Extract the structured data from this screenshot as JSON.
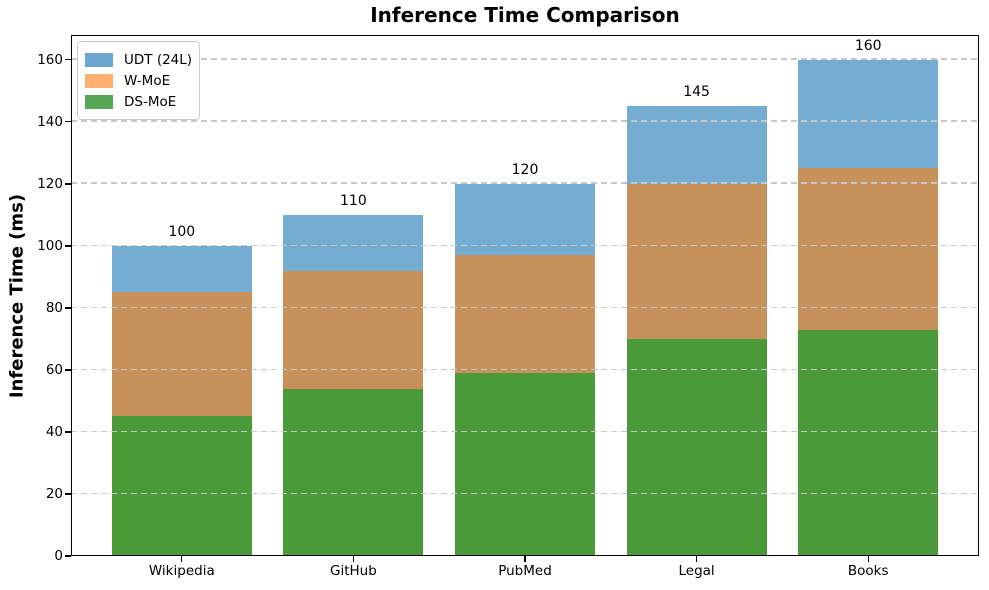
{
  "title": "Inference Time Comparison",
  "ylabel": "Inference Time (ms)",
  "colors": {
    "background": "#ffffff",
    "axis_spine": "#000000",
    "gridline": "#c8c8c8",
    "text": "#000000"
  },
  "chart_data": {
    "type": "bar",
    "mode": "overlapped",
    "title": "Inference Time Comparison",
    "xlabel": "",
    "ylabel": "Inference Time (ms)",
    "categories": [
      "Wikipedia",
      "GitHub",
      "PubMed",
      "Legal",
      "Books"
    ],
    "series": [
      {
        "name": "UDT (24L)",
        "values": [
          100,
          110,
          120,
          145,
          160
        ],
        "bar_color": "#75acd2",
        "legend_color": "#6da7d0"
      },
      {
        "name": "W-MoE",
        "values": [
          85,
          92,
          97,
          120,
          125
        ],
        "bar_color": "#c6915b",
        "legend_color": "#ffb070"
      },
      {
        "name": "DS-MoE",
        "values": [
          45,
          54,
          59,
          70,
          73
        ],
        "bar_color": "#4a9a3a",
        "legend_color": "#55a655"
      }
    ],
    "value_labels": [
      100,
      110,
      120,
      145,
      160
    ],
    "value_labels_series": "UDT (24L)",
    "yticks": [
      0,
      20,
      40,
      60,
      80,
      100,
      120,
      140,
      160
    ],
    "ylim": [
      0,
      168
    ],
    "grid": "dashed-horizontal",
    "grid_on_top": true,
    "legend_position": "upper-left"
  }
}
